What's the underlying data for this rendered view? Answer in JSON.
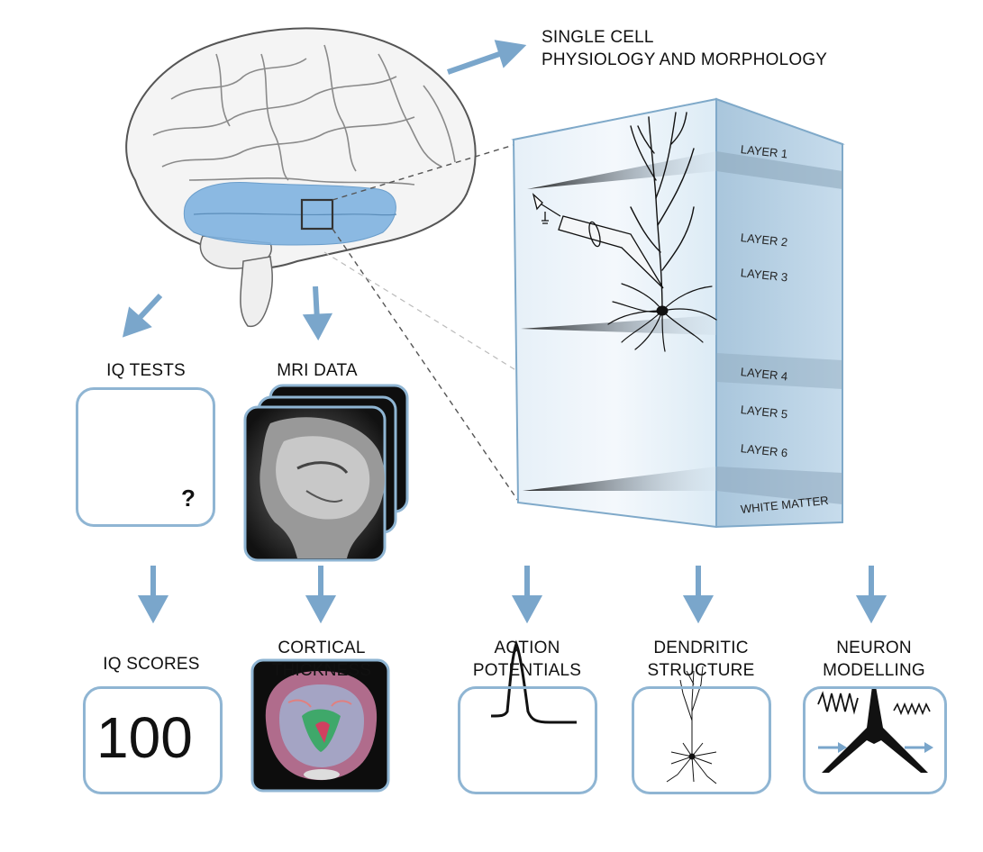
{
  "top_label": {
    "line1": "SINGLE CELL",
    "line2": "PHYSIOLOGY AND MORPHOLOGY"
  },
  "layers": [
    "LAYER 1",
    "LAYER 2",
    "LAYER 3",
    "LAYER 4",
    "LAYER 5",
    "LAYER 6",
    "WHITE MATTER"
  ],
  "mid_labels": {
    "iq_tests": "IQ TESTS",
    "mri_data": "MRI DATA"
  },
  "iq_test_question": "?",
  "outputs": {
    "iq_scores": {
      "line1": "IQ SCORES",
      "value": "100"
    },
    "cortical": {
      "line1": "CORTICAL",
      "line2": "THICKNESS"
    },
    "action": {
      "line1": "ACTION",
      "line2": "POTENTIALS"
    },
    "dendritic": {
      "line1": "DENDRITIC",
      "line2": "STRUCTURE"
    },
    "neuron": {
      "line1": "NEURON",
      "line2": "MODELLING"
    }
  },
  "colors": {
    "arrow": "#7aa6cb",
    "region": "#7fb3e0",
    "box_border": "#8fb5d3",
    "column": "#cfe3f1"
  }
}
